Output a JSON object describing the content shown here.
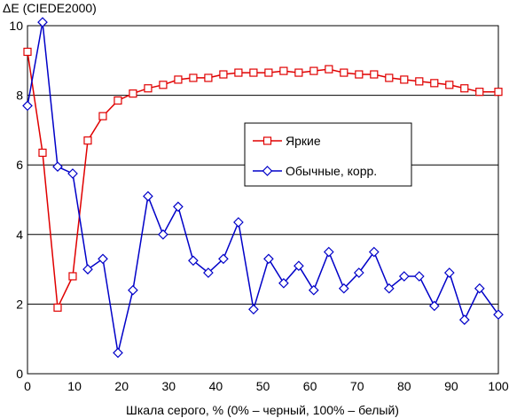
{
  "chart_data": {
    "type": "line",
    "ylabel": "ΔE (CIEDE2000)",
    "xlabel": "Шкала серого, % (0% – черный, 100% – белый)",
    "xlim": [
      0,
      100
    ],
    "ylim": [
      0,
      10
    ],
    "x_ticks": [
      "0",
      "10",
      "20",
      "30",
      "40",
      "50",
      "60",
      "70",
      "80",
      "90",
      "100"
    ],
    "y_ticks": [
      "0",
      "2",
      "4",
      "6",
      "8",
      "10"
    ],
    "grid": "horizontal",
    "legend_position": "center-right",
    "x": [
      0,
      3.2,
      6.4,
      9.6,
      12.8,
      16,
      19.2,
      22.4,
      25.6,
      28.8,
      32,
      35.2,
      38.4,
      41.6,
      44.8,
      48,
      51.2,
      54.4,
      57.6,
      60.8,
      64,
      67.2,
      70.4,
      73.6,
      76.8,
      80,
      83.2,
      86.4,
      89.6,
      92.8,
      96,
      100
    ],
    "series": [
      {
        "name": "Яркие",
        "color": "#e00000",
        "marker": "square",
        "values": [
          9.25,
          6.35,
          1.9,
          2.8,
          6.7,
          7.4,
          7.85,
          8.05,
          8.2,
          8.3,
          8.45,
          8.5,
          8.5,
          8.6,
          8.65,
          8.65,
          8.65,
          8.7,
          8.65,
          8.7,
          8.75,
          8.65,
          8.6,
          8.6,
          8.5,
          8.45,
          8.4,
          8.35,
          8.3,
          8.2,
          8.1,
          8.1
        ]
      },
      {
        "name": "Обычные, корр.",
        "color": "#0000c8",
        "marker": "diamond",
        "values": [
          7.7,
          10.1,
          5.95,
          5.75,
          3.0,
          3.3,
          0.6,
          2.4,
          5.1,
          4.0,
          4.8,
          3.25,
          2.9,
          3.3,
          4.35,
          1.85,
          3.3,
          2.6,
          3.1,
          2.4,
          3.5,
          2.45,
          2.9,
          3.5,
          2.45,
          2.8,
          2.8,
          1.95,
          2.9,
          1.55,
          2.45,
          1.7
        ]
      }
    ]
  }
}
